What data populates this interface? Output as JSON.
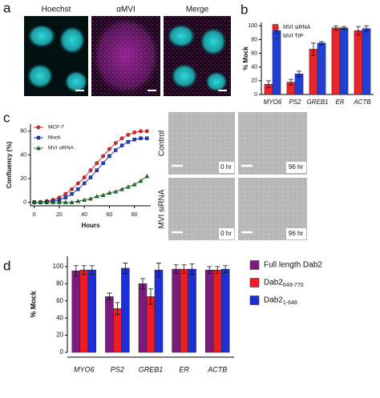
{
  "figure": {
    "panel_labels": [
      "a",
      "b",
      "c",
      "d"
    ],
    "image_titles": [
      "Hoechst",
      "αMVI",
      "Merge"
    ],
    "row_labels": [
      "Control",
      "MVI siRNA"
    ],
    "time_labels": [
      "0 hr",
      "96 hr"
    ]
  },
  "chart_data": [
    {
      "type": "bar",
      "ylabel": "% Mock",
      "categories": [
        "MYO6",
        "PS2",
        "GREB1",
        "ER",
        "ACTB"
      ],
      "series": [
        {
          "name": "MVI siRNA",
          "color": "#e8262b",
          "values": [
            15,
            18,
            66,
            97,
            93
          ],
          "errors": [
            5,
            4,
            9,
            3,
            6
          ]
        },
        {
          "name": "MVI TIP",
          "color": "#1f3fd6",
          "values": [
            93,
            30,
            75,
            97,
            96
          ],
          "errors": [
            4,
            4,
            2,
            2,
            4
          ]
        }
      ],
      "ylim": [
        0,
        105
      ],
      "yticks": [
        0,
        20,
        40,
        60,
        80,
        100
      ],
      "legend": "upper-left"
    },
    {
      "type": "line",
      "xlabel": "Hours",
      "ylabel": "Confluency (%)",
      "x": [
        0,
        5,
        10,
        15,
        20,
        25,
        30,
        35,
        40,
        45,
        50,
        55,
        60,
        65,
        70,
        75,
        80,
        85,
        90
      ],
      "series": [
        {
          "name": "MCF-7",
          "color": "#e8262b",
          "marker": "circle",
          "values": [
            0,
            0,
            1,
            2,
            4,
            7,
            11,
            16,
            21,
            27,
            33,
            39,
            45,
            50,
            54,
            57,
            59,
            60,
            60
          ]
        },
        {
          "name": "Mock",
          "color": "#1f3fd6",
          "marker": "square",
          "values": [
            0,
            0,
            0,
            1,
            2,
            4,
            7,
            11,
            16,
            21,
            27,
            33,
            39,
            44,
            48,
            51,
            53,
            54,
            54
          ]
        },
        {
          "name": "MVI siRNA",
          "color": "#1f7a2a",
          "marker": "triangle",
          "values": [
            0,
            0,
            0,
            0,
            0,
            0,
            0,
            1,
            2,
            3,
            5,
            6,
            8,
            9,
            11,
            13,
            15,
            18,
            22
          ]
        }
      ],
      "xlim": [
        -3,
        93
      ],
      "xticks": [
        0,
        20,
        40,
        60,
        80
      ],
      "ylim": [
        -3,
        66
      ],
      "yticks": [
        0,
        20,
        40,
        60
      ],
      "legend": "upper-left"
    },
    {
      "type": "bar",
      "ylabel": "% Mock",
      "categories": [
        "MYO6",
        "PS2",
        "GREB1",
        "ER",
        "ACTB"
      ],
      "series": [
        {
          "name": "Full length Dab2",
          "color": "#7d1a7e",
          "values": [
            95,
            65,
            80,
            97,
            96
          ],
          "errors": [
            6,
            4,
            6,
            5,
            4
          ]
        },
        {
          "name": "Dab2",
          "subscript": "649-770",
          "color": "#ee1c24",
          "values": [
            96,
            51,
            65,
            97,
            96
          ],
          "errors": [
            5,
            7,
            9,
            5,
            4
          ]
        },
        {
          "name": "Dab2",
          "subscript": "1-648",
          "color": "#1d2fd9",
          "values": [
            96,
            98,
            96,
            97,
            97
          ],
          "errors": [
            5,
            6,
            8,
            6,
            4
          ]
        }
      ],
      "ylim": [
        0,
        112
      ],
      "yticks": [
        0,
        20,
        40,
        60,
        80,
        100
      ],
      "legend": "right"
    }
  ]
}
